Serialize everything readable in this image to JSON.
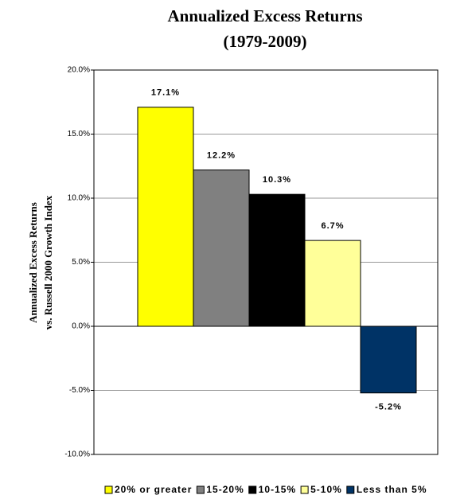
{
  "chart_data": {
    "type": "bar",
    "title": [
      "Annualized Excess Returns",
      "(1979-2009)"
    ],
    "y_label": [
      "Annualized Excess Returns",
      "vs. Russell 2000 Growth Index"
    ],
    "series": [
      {
        "name": "20% or greater",
        "color": "#ffff00",
        "values": [
          17.1
        ],
        "value_labels": [
          "17.1%"
        ]
      },
      {
        "name": "15-20%",
        "color": "#808080",
        "values": [
          12.2
        ],
        "value_labels": [
          "12.2%"
        ]
      },
      {
        "name": "10-15%",
        "color": "#000000",
        "values": [
          10.3
        ],
        "value_labels": [
          "10.3%"
        ]
      },
      {
        "name": "5-10%",
        "color": "#ffff99",
        "values": [
          6.7
        ],
        "value_labels": [
          "6.7%"
        ]
      },
      {
        "name": "Less than 5%",
        "color": "#003366",
        "values": [
          -5.2
        ],
        "value_labels": [
          "-5.2%"
        ]
      }
    ],
    "ylim": [
      -10,
      20
    ],
    "yticks": [
      {
        "value": -10,
        "label": "-10.0%"
      },
      {
        "value": -5,
        "label": "-5.0%"
      },
      {
        "value": 0,
        "label": "0.0%"
      },
      {
        "value": 5,
        "label": "5.0%"
      },
      {
        "value": 10,
        "label": "10.0%"
      },
      {
        "value": 15,
        "label": "15.0%"
      },
      {
        "value": 20,
        "label": "20.0%"
      }
    ],
    "grid": true,
    "legend": "bottom"
  }
}
